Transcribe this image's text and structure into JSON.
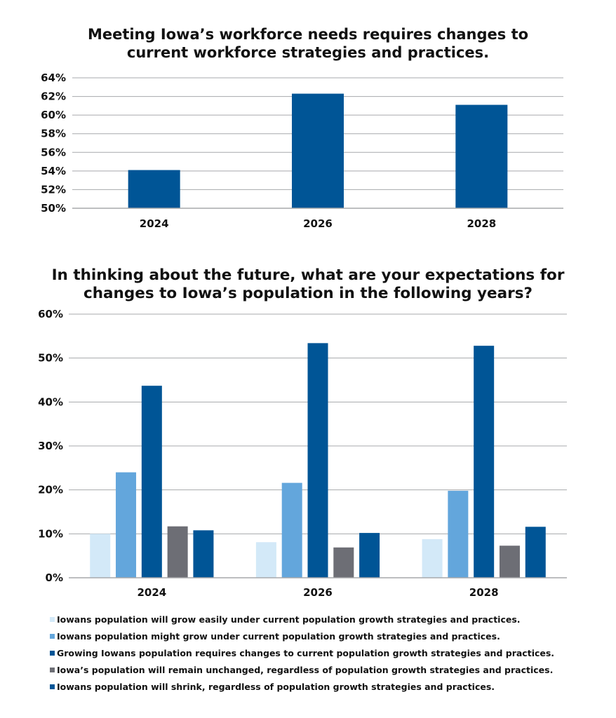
{
  "chart_data": [
    {
      "type": "bar",
      "title_lines": [
        "Meeting Iowa’s workforce needs requires changes to",
        "current workforce strategies and practices."
      ],
      "categories": [
        "2024",
        "2026",
        "2028"
      ],
      "values": [
        54.1,
        62.3,
        61.1
      ],
      "ylim": [
        50,
        64
      ],
      "yticks": [
        "64%",
        "62%",
        "60%",
        "58%",
        "56%",
        "54%",
        "52%",
        "50%"
      ],
      "grid": true,
      "colors": {
        "bar": "#005596",
        "grid": "#a7a9ac"
      }
    },
    {
      "type": "bar",
      "title_lines": [
        "In thinking about the future, what are your expectations for",
        "changes to Iowa’s population in the following years?"
      ],
      "categories": [
        "2024",
        "2026",
        "2028"
      ],
      "ylim": [
        0,
        60
      ],
      "yticks": [
        "60%",
        "50%",
        "40%",
        "30%",
        "20%",
        "10%",
        "0%"
      ],
      "grid": true,
      "legend_position": "bottom",
      "series": [
        {
          "name": "Iowans population will grow easily under current population growth strategies and practices.",
          "values": [
            10.0,
            8.1,
            8.8
          ],
          "color": "#d3e9f8"
        },
        {
          "name": "Iowans population might grow under current population growth strategies and practices.",
          "values": [
            24.0,
            21.6,
            19.8
          ],
          "color": "#63a6dc"
        },
        {
          "name": "Growing Iowans population requires changes to current population growth strategies and practices.",
          "values": [
            43.7,
            53.4,
            52.8
          ],
          "color": "#005596"
        },
        {
          "name": "Iowa’s population will remain unchanged, regardless of population growth strategies and practices.",
          "values": [
            11.7,
            6.9,
            7.3
          ],
          "color": "#6d6e75"
        },
        {
          "name": "Iowans population will shrink, regardless of population growth strategies and practices.",
          "values": [
            10.8,
            10.2,
            11.6
          ],
          "color": "#005596"
        }
      ]
    }
  ]
}
